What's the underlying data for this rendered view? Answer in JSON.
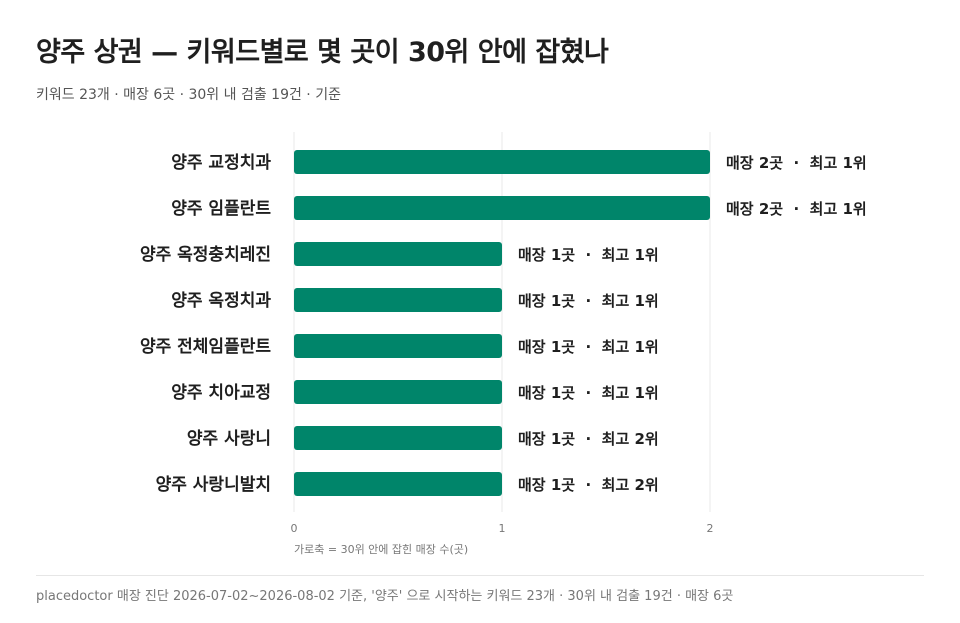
{
  "header": {
    "title": "양주 상권 — 키워드별로 몇 곳이 30위 안에 잡혔나",
    "subtitle": "키워드 23개 · 매장 6곳 · 30위 내 검출 19건 · 기준"
  },
  "footer": {
    "text": "placedoctor 매장 진단 2026-07-02~2026-08-02 기준, '양주' 으로 시작하는 키워드 23개 · 30위 내 검출 19건 · 매장 6곳"
  },
  "colors": {
    "bar": "#00856a",
    "grid": "#e8e8e8",
    "text": "#1f1f1f"
  },
  "chart_data": {
    "type": "bar",
    "orientation": "horizontal",
    "categories": [
      "양주 교정치과",
      "양주 임플란트",
      "양주 옥정충치레진",
      "양주 옥정치과",
      "양주 전체임플란트",
      "양주 치아교정",
      "양주 사랑니",
      "양주 사랑니발치"
    ],
    "values": [
      2,
      2,
      1,
      1,
      1,
      1,
      1,
      1
    ],
    "value_labels": [
      "매장 2곳  ·  최고 1위",
      "매장 2곳  ·  최고 1위",
      "매장 1곳  ·  최고 1위",
      "매장 1곳  ·  최고 1위",
      "매장 1곳  ·  최고 1위",
      "매장 1곳  ·  최고 1위",
      "매장 1곳  ·  최고 2위",
      "매장 1곳  ·  최고 2위"
    ],
    "xlim": [
      0,
      2
    ],
    "xticks": [
      0,
      1,
      2
    ],
    "xlabel": "가로축 = 30위 안에 잡힌 매장 수(곳)",
    "grid": true
  }
}
